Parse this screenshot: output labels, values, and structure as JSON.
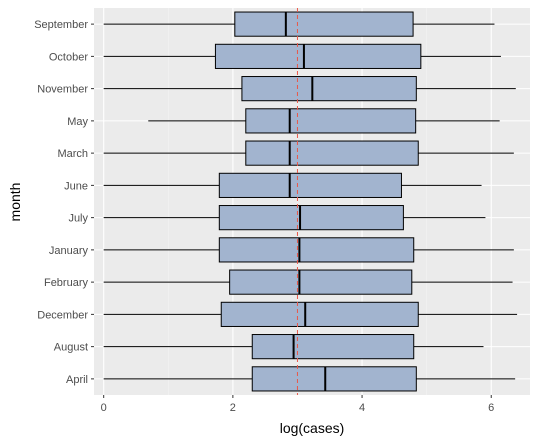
{
  "chart_data": {
    "type": "boxplot",
    "orientation": "horizontal",
    "xlabel": "log(cases)",
    "ylabel": "month",
    "xlim": [
      -0.15,
      6.6
    ],
    "x_ticks": [
      0,
      2,
      4,
      6
    ],
    "x_tick_labels": [
      "0",
      "2",
      "4",
      "6"
    ],
    "reference_line": {
      "x": 3.0,
      "style": "dashed",
      "color": "#e8584a"
    },
    "grid": true,
    "legend": "none",
    "colors": {
      "panel_bg": "#ebebeb",
      "grid_major": "#ffffff",
      "grid_minor": "#f4f4f4",
      "box_fill": "#a2b4cf",
      "box_stroke": "#000000"
    },
    "categories": [
      "September",
      "October",
      "November",
      "May",
      "March",
      "June",
      "July",
      "January",
      "February",
      "December",
      "August",
      "April"
    ],
    "boxes": [
      {
        "month": "September",
        "whisker_low": 0.0,
        "q1": 2.03,
        "median": 2.82,
        "q3": 4.79,
        "whisker_high": 6.05
      },
      {
        "month": "October",
        "whisker_low": 0.0,
        "q1": 1.73,
        "median": 3.1,
        "q3": 4.91,
        "whisker_high": 6.15
      },
      {
        "month": "November",
        "whisker_low": 0.0,
        "q1": 2.14,
        "median": 3.23,
        "q3": 4.84,
        "whisker_high": 6.38
      },
      {
        "month": "May",
        "whisker_low": 0.69,
        "q1": 2.2,
        "median": 2.88,
        "q3": 4.83,
        "whisker_high": 6.13
      },
      {
        "month": "March",
        "whisker_low": 0.0,
        "q1": 2.2,
        "median": 2.88,
        "q3": 4.87,
        "whisker_high": 6.35
      },
      {
        "month": "June",
        "whisker_low": 0.0,
        "q1": 1.79,
        "median": 2.88,
        "q3": 4.61,
        "whisker_high": 5.85
      },
      {
        "month": "July",
        "whisker_low": 0.0,
        "q1": 1.79,
        "median": 3.04,
        "q3": 4.64,
        "whisker_high": 5.91
      },
      {
        "month": "January",
        "whisker_low": 0.0,
        "q1": 1.79,
        "median": 3.03,
        "q3": 4.8,
        "whisker_high": 6.35
      },
      {
        "month": "February",
        "whisker_low": 0.0,
        "q1": 1.95,
        "median": 3.03,
        "q3": 4.77,
        "whisker_high": 6.33
      },
      {
        "month": "December",
        "whisker_low": 0.0,
        "q1": 1.82,
        "median": 3.12,
        "q3": 4.87,
        "whisker_high": 6.4
      },
      {
        "month": "August",
        "whisker_low": 0.0,
        "q1": 2.3,
        "median": 2.94,
        "q3": 4.8,
        "whisker_high": 5.88
      },
      {
        "month": "April",
        "whisker_low": 0.0,
        "q1": 2.3,
        "median": 3.43,
        "q3": 4.84,
        "whisker_high": 6.37
      }
    ]
  }
}
